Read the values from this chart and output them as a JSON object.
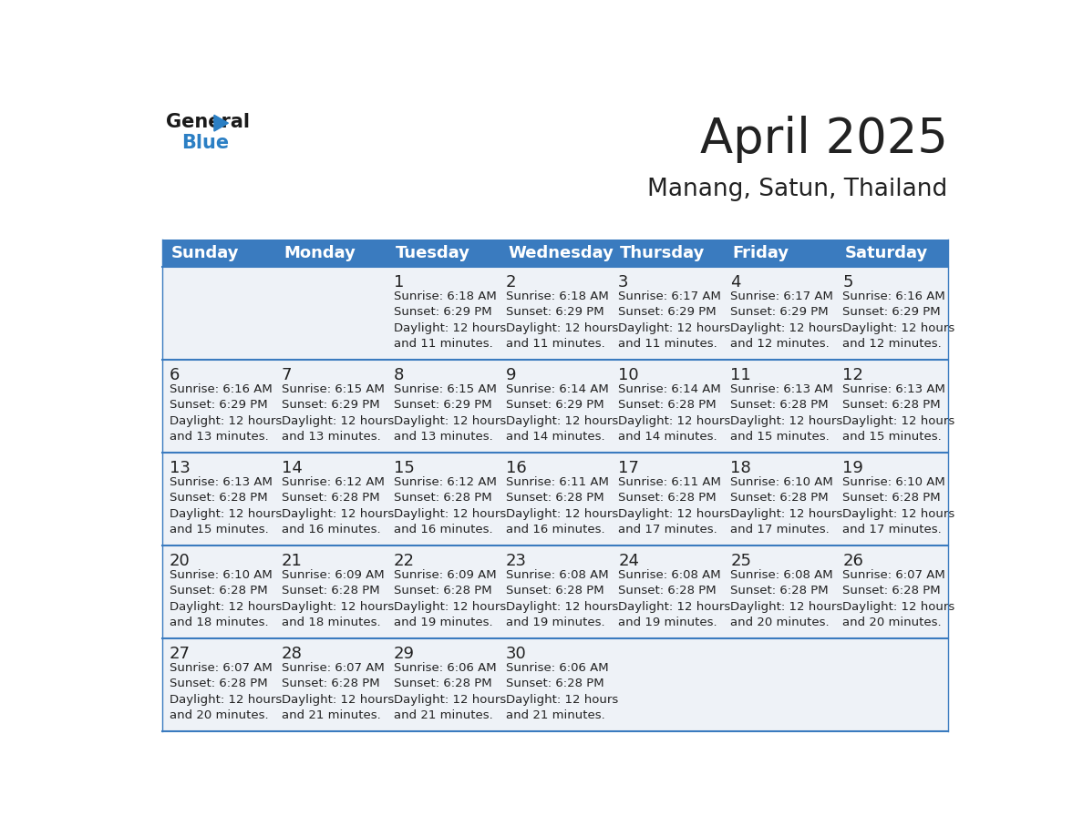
{
  "title": "April 2025",
  "subtitle": "Manang, Satun, Thailand",
  "header_bg_color": "#3a7bbf",
  "header_text_color": "#ffffff",
  "cell_bg_color": "#eef2f7",
  "row_line_color": "#3a7bbf",
  "text_color": "#222222",
  "days_of_week": [
    "Sunday",
    "Monday",
    "Tuesday",
    "Wednesday",
    "Thursday",
    "Friday",
    "Saturday"
  ],
  "calendar_data": [
    [
      {
        "day": null,
        "sunrise": null,
        "sunset": null,
        "daylight": null
      },
      {
        "day": null,
        "sunrise": null,
        "sunset": null,
        "daylight": null
      },
      {
        "day": 1,
        "sunrise": "6:18 AM",
        "sunset": "6:29 PM",
        "daylight": "12 hours\nand 11 minutes."
      },
      {
        "day": 2,
        "sunrise": "6:18 AM",
        "sunset": "6:29 PM",
        "daylight": "12 hours\nand 11 minutes."
      },
      {
        "day": 3,
        "sunrise": "6:17 AM",
        "sunset": "6:29 PM",
        "daylight": "12 hours\nand 11 minutes."
      },
      {
        "day": 4,
        "sunrise": "6:17 AM",
        "sunset": "6:29 PM",
        "daylight": "12 hours\nand 12 minutes."
      },
      {
        "day": 5,
        "sunrise": "6:16 AM",
        "sunset": "6:29 PM",
        "daylight": "12 hours\nand 12 minutes."
      }
    ],
    [
      {
        "day": 6,
        "sunrise": "6:16 AM",
        "sunset": "6:29 PM",
        "daylight": "12 hours\nand 13 minutes."
      },
      {
        "day": 7,
        "sunrise": "6:15 AM",
        "sunset": "6:29 PM",
        "daylight": "12 hours\nand 13 minutes."
      },
      {
        "day": 8,
        "sunrise": "6:15 AM",
        "sunset": "6:29 PM",
        "daylight": "12 hours\nand 13 minutes."
      },
      {
        "day": 9,
        "sunrise": "6:14 AM",
        "sunset": "6:29 PM",
        "daylight": "12 hours\nand 14 minutes."
      },
      {
        "day": 10,
        "sunrise": "6:14 AM",
        "sunset": "6:28 PM",
        "daylight": "12 hours\nand 14 minutes."
      },
      {
        "day": 11,
        "sunrise": "6:13 AM",
        "sunset": "6:28 PM",
        "daylight": "12 hours\nand 15 minutes."
      },
      {
        "day": 12,
        "sunrise": "6:13 AM",
        "sunset": "6:28 PM",
        "daylight": "12 hours\nand 15 minutes."
      }
    ],
    [
      {
        "day": 13,
        "sunrise": "6:13 AM",
        "sunset": "6:28 PM",
        "daylight": "12 hours\nand 15 minutes."
      },
      {
        "day": 14,
        "sunrise": "6:12 AM",
        "sunset": "6:28 PM",
        "daylight": "12 hours\nand 16 minutes."
      },
      {
        "day": 15,
        "sunrise": "6:12 AM",
        "sunset": "6:28 PM",
        "daylight": "12 hours\nand 16 minutes."
      },
      {
        "day": 16,
        "sunrise": "6:11 AM",
        "sunset": "6:28 PM",
        "daylight": "12 hours\nand 16 minutes."
      },
      {
        "day": 17,
        "sunrise": "6:11 AM",
        "sunset": "6:28 PM",
        "daylight": "12 hours\nand 17 minutes."
      },
      {
        "day": 18,
        "sunrise": "6:10 AM",
        "sunset": "6:28 PM",
        "daylight": "12 hours\nand 17 minutes."
      },
      {
        "day": 19,
        "sunrise": "6:10 AM",
        "sunset": "6:28 PM",
        "daylight": "12 hours\nand 17 minutes."
      }
    ],
    [
      {
        "day": 20,
        "sunrise": "6:10 AM",
        "sunset": "6:28 PM",
        "daylight": "12 hours\nand 18 minutes."
      },
      {
        "day": 21,
        "sunrise": "6:09 AM",
        "sunset": "6:28 PM",
        "daylight": "12 hours\nand 18 minutes."
      },
      {
        "day": 22,
        "sunrise": "6:09 AM",
        "sunset": "6:28 PM",
        "daylight": "12 hours\nand 19 minutes."
      },
      {
        "day": 23,
        "sunrise": "6:08 AM",
        "sunset": "6:28 PM",
        "daylight": "12 hours\nand 19 minutes."
      },
      {
        "day": 24,
        "sunrise": "6:08 AM",
        "sunset": "6:28 PM",
        "daylight": "12 hours\nand 19 minutes."
      },
      {
        "day": 25,
        "sunrise": "6:08 AM",
        "sunset": "6:28 PM",
        "daylight": "12 hours\nand 20 minutes."
      },
      {
        "day": 26,
        "sunrise": "6:07 AM",
        "sunset": "6:28 PM",
        "daylight": "12 hours\nand 20 minutes."
      }
    ],
    [
      {
        "day": 27,
        "sunrise": "6:07 AM",
        "sunset": "6:28 PM",
        "daylight": "12 hours\nand 20 minutes."
      },
      {
        "day": 28,
        "sunrise": "6:07 AM",
        "sunset": "6:28 PM",
        "daylight": "12 hours\nand 21 minutes."
      },
      {
        "day": 29,
        "sunrise": "6:06 AM",
        "sunset": "6:28 PM",
        "daylight": "12 hours\nand 21 minutes."
      },
      {
        "day": 30,
        "sunrise": "6:06 AM",
        "sunset": "6:28 PM",
        "daylight": "12 hours\nand 21 minutes."
      },
      {
        "day": null,
        "sunrise": null,
        "sunset": null,
        "daylight": null
      },
      {
        "day": null,
        "sunrise": null,
        "sunset": null,
        "daylight": null
      },
      {
        "day": null,
        "sunrise": null,
        "sunset": null,
        "daylight": null
      }
    ]
  ],
  "logo_color_general": "#1a1a1a",
  "logo_color_blue": "#2b7fc4",
  "title_fontsize": 38,
  "subtitle_fontsize": 19,
  "header_fontsize": 13,
  "day_num_fontsize": 13,
  "cell_text_fontsize": 9.5
}
